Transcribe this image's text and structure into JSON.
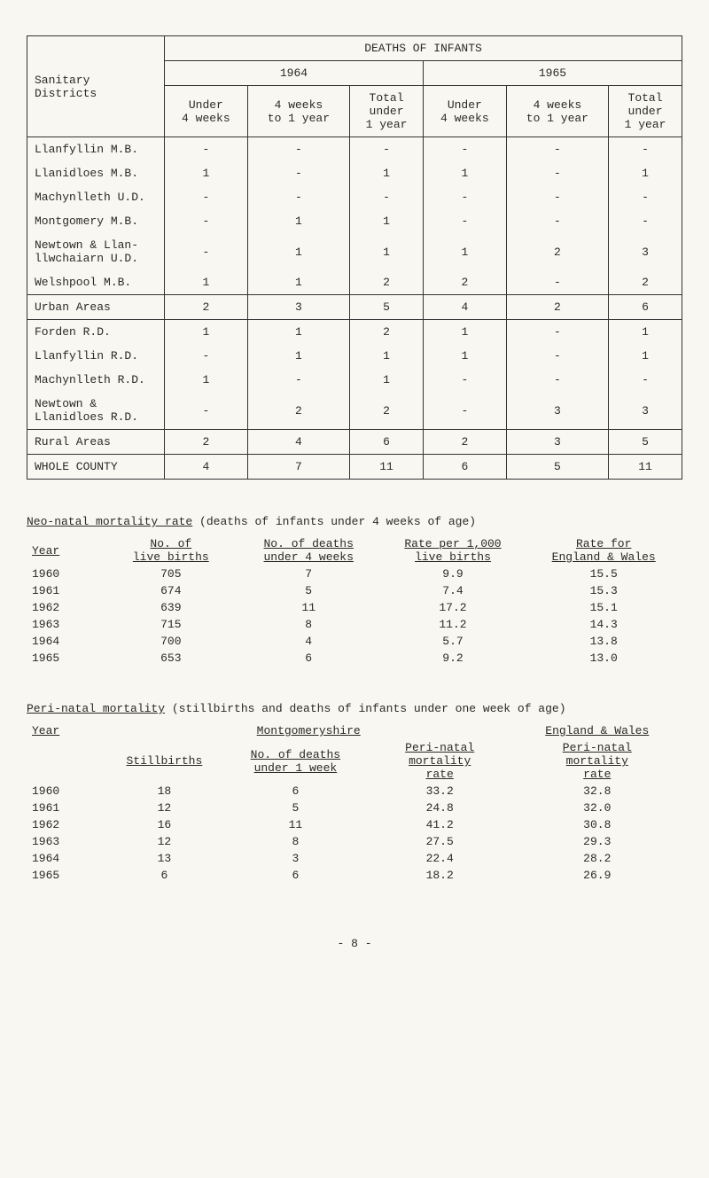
{
  "mainTable": {
    "headers": {
      "sanitary": "Sanitary\nDistricts",
      "deaths": "DEATHS OF INFANTS",
      "y1964": "1964",
      "y1965": "1965",
      "under4w": "Under\n4 weeks",
      "fourWto1y": "4 weeks\nto 1 year",
      "totalU1y": "Total\nunder\n1 year"
    },
    "rows": [
      {
        "label": "Llanfyllin M.B.",
        "a": "-",
        "b": "-",
        "c": "-",
        "d": "-",
        "e": "-",
        "f": "-"
      },
      {
        "label": "Llanidloes M.B.",
        "a": "1",
        "b": "-",
        "c": "1",
        "d": "1",
        "e": "-",
        "f": "1"
      },
      {
        "label": "Machynlleth U.D.",
        "a": "-",
        "b": "-",
        "c": "-",
        "d": "-",
        "e": "-",
        "f": "-"
      },
      {
        "label": "Montgomery M.B.",
        "a": "-",
        "b": "1",
        "c": "1",
        "d": "-",
        "e": "-",
        "f": "-"
      },
      {
        "label": "Newtown & Llan-\nllwchaiarn U.D.",
        "a": "-",
        "b": "1",
        "c": "1",
        "d": "1",
        "e": "2",
        "f": "3"
      },
      {
        "label": "Welshpool M.B.",
        "a": "1",
        "b": "1",
        "c": "2",
        "d": "2",
        "e": "-",
        "f": "2"
      }
    ],
    "urban": {
      "label": "Urban Areas",
      "a": "2",
      "b": "3",
      "c": "5",
      "d": "4",
      "e": "2",
      "f": "6"
    },
    "rows2": [
      {
        "label": "Forden R.D.",
        "a": "1",
        "b": "1",
        "c": "2",
        "d": "1",
        "e": "-",
        "f": "1"
      },
      {
        "label": "Llanfyllin R.D.",
        "a": "-",
        "b": "1",
        "c": "1",
        "d": "1",
        "e": "-",
        "f": "1"
      },
      {
        "label": "Machynlleth R.D.",
        "a": "1",
        "b": "-",
        "c": "1",
        "d": "-",
        "e": "-",
        "f": "-"
      },
      {
        "label": "Newtown &\nLlanidloes R.D.",
        "a": "-",
        "b": "2",
        "c": "2",
        "d": "-",
        "e": "3",
        "f": "3"
      }
    ],
    "rural": {
      "label": "Rural Areas",
      "a": "2",
      "b": "4",
      "c": "6",
      "d": "2",
      "e": "3",
      "f": "5"
    },
    "whole": {
      "label": "WHOLE COUNTY",
      "a": "4",
      "b": "7",
      "c": "11",
      "d": "6",
      "e": "5",
      "f": "11"
    }
  },
  "neonatal": {
    "title": "Neo-natal mortality rate",
    "titleRest": " (deaths of infants under 4 weeks of age)",
    "headers": {
      "year": "Year",
      "liveBirths": "No. of\nlive births",
      "deaths4w": "No. of deaths\nunder 4 weeks",
      "rate1000": "Rate per 1,000\nlive births",
      "rateEW": "Rate for\nEngland & Wales"
    },
    "rows": [
      {
        "year": "1960",
        "lb": "705",
        "d": "7",
        "r": "9.9",
        "ew": "15.5"
      },
      {
        "year": "1961",
        "lb": "674",
        "d": "5",
        "r": "7.4",
        "ew": "15.3"
      },
      {
        "year": "1962",
        "lb": "639",
        "d": "11",
        "r": "17.2",
        "ew": "15.1"
      },
      {
        "year": "1963",
        "lb": "715",
        "d": "8",
        "r": "11.2",
        "ew": "14.3"
      },
      {
        "year": "1964",
        "lb": "700",
        "d": "4",
        "r": "5.7",
        "ew": "13.8"
      },
      {
        "year": "1965",
        "lb": "653",
        "d": "6",
        "r": "9.2",
        "ew": "13.0"
      }
    ]
  },
  "perinatal": {
    "title": "Peri-natal mortality",
    "titleRest": " (stillbirths and deaths of infants under one week of age)",
    "headers": {
      "year": "Year",
      "mont": "Montgomeryshire",
      "ew": "England & Wales",
      "still": "Stillbirths",
      "deaths1w": "No. of deaths\nunder 1 week",
      "periRate": "Peri-natal\nmortality\nrate",
      "ewPeriRate": "Peri-natal\nmortality\nrate"
    },
    "rows": [
      {
        "year": "1960",
        "s": "18",
        "d": "6",
        "r": "33.2",
        "ew": "32.8"
      },
      {
        "year": "1961",
        "s": "12",
        "d": "5",
        "r": "24.8",
        "ew": "32.0"
      },
      {
        "year": "1962",
        "s": "16",
        "d": "11",
        "r": "41.2",
        "ew": "30.8"
      },
      {
        "year": "1963",
        "s": "12",
        "d": "8",
        "r": "27.5",
        "ew": "29.3"
      },
      {
        "year": "1964",
        "s": "13",
        "d": "3",
        "r": "22.4",
        "ew": "28.2"
      },
      {
        "year": "1965",
        "s": "6",
        "d": "6",
        "r": "18.2",
        "ew": "26.9"
      }
    ]
  },
  "pageNum": "- 8 -"
}
